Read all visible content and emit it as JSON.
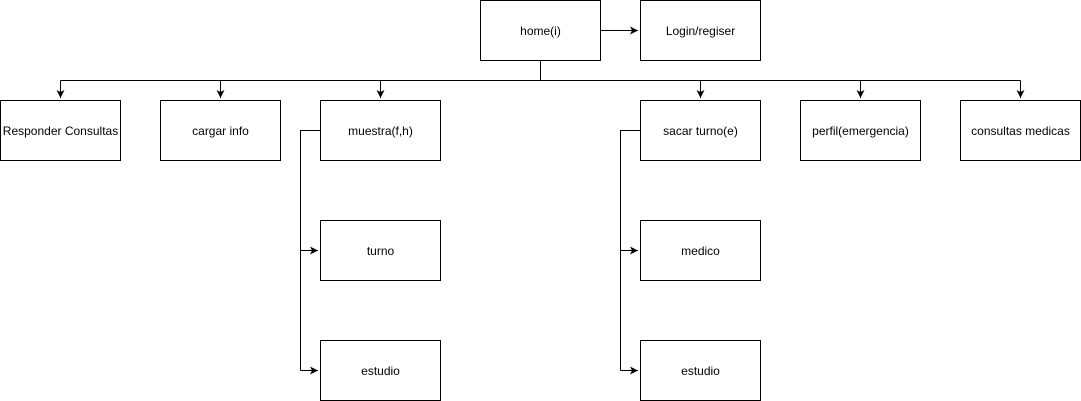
{
  "nodes": {
    "home": "home(i)",
    "login": "Login/regiser",
    "responder": "Responder Consultas",
    "cargar": "cargar info",
    "muestra": "muestra(f,h)",
    "turno": "turno",
    "estudio_muestra": "estudio",
    "sacar_turno": "sacar turno(e)",
    "medico": "medico",
    "estudio_turno": "estudio",
    "perfil": "perfil(emergencia)",
    "consultas": "consultas medicas"
  },
  "colors": {
    "stroke": "#000000",
    "fill": "#ffffff"
  }
}
